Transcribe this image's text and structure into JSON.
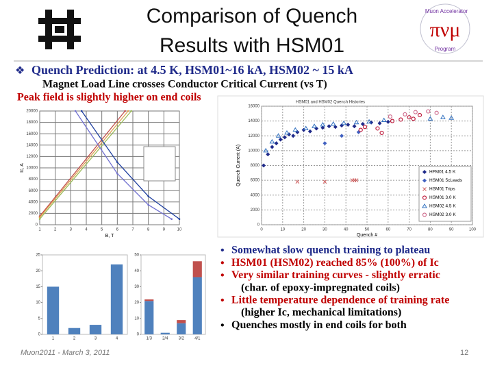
{
  "header": {
    "title_lines": [
      "Comparison of Quench",
      "Results with HSM01"
    ]
  },
  "logo": {
    "arc_top": "Muon Accelerator",
    "arc_bottom": "Program"
  },
  "top_bullets": [
    {
      "text": "Quench Prediction: at 4.5 K, HSM01~16 kA, HSM02 ~ 15 kA"
    },
    {
      "text": "Magnet Load Line crosses Conductor Critical Current (vs T)"
    },
    {
      "text": "Peak field is slightly higher on end coils"
    }
  ],
  "right_bullets": [
    {
      "text": "Somewhat slow quench training to plateau",
      "color": "#1f2a8a",
      "bullet": true
    },
    {
      "text": "HSM01 (HSM02) reached 85% (100%) of Ic",
      "color": "#c00000",
      "bullet": true
    },
    {
      "text": "Very similar training curves - slightly erratic",
      "color": "#c00000",
      "bullet": true
    },
    {
      "text": "(char. of epoxy-impregnated coils)",
      "color": "#000000",
      "bullet": false
    },
    {
      "text": "Little temperature dependence of training rate",
      "color": "#c00000",
      "bullet": true
    },
    {
      "text": "(higher Ic, mechanical limitations)",
      "color": "#000000",
      "bullet": false
    },
    {
      "text": "Quenches mostly in end coils for both",
      "color": "#000000",
      "bullet": true
    }
  ],
  "footer": {
    "text": "Muon2011 - March 3, 2011",
    "page": "12"
  },
  "load_line": {
    "type": "line",
    "x_label": "B, T",
    "y_label": "Ic, A",
    "xlim": [
      1,
      10
    ],
    "xticks": [
      1,
      2,
      3,
      4,
      5,
      6,
      7,
      8,
      9,
      10
    ],
    "ylim": [
      0,
      20000
    ],
    "yticks": [
      0,
      2000,
      4000,
      6000,
      8000,
      10000,
      12000,
      14000,
      16000,
      18000,
      20000
    ],
    "series": [
      {
        "color": "#c0504d",
        "x": [
          1,
          6.5
        ],
        "values": [
          1500,
          20000
        ]
      },
      {
        "color": "#e0a050",
        "x": [
          1,
          6.7
        ],
        "values": [
          1300,
          20000
        ]
      },
      {
        "color": "#9bbb59",
        "x": [
          1,
          6.9
        ],
        "values": [
          1000,
          20000
        ]
      },
      {
        "color": "#1f3f9f",
        "x": [
          3.7,
          6,
          8,
          10
        ],
        "values": [
          20000,
          11000,
          5000,
          1000
        ]
      },
      {
        "color": "#7070d0",
        "x": [
          3.3,
          6,
          8,
          9.5
        ],
        "values": [
          20000,
          9000,
          3500,
          1000
        ]
      }
    ]
  },
  "quench_history": {
    "type": "scatter",
    "title": "HSM01 and HSM02 Quench Histories",
    "x_label": "Quench #",
    "y_label": "Quench Current (A)",
    "xlim": [
      0,
      100
    ],
    "xticks": [
      0,
      10,
      20,
      30,
      40,
      50,
      60,
      70,
      80,
      90,
      100
    ],
    "ylim": [
      0,
      16000
    ],
    "yticks": [
      0,
      2000,
      4000,
      6000,
      8000,
      10000,
      12000,
      14000,
      16000
    ],
    "series": [
      {
        "name": "HFM01 4.5 K",
        "color": "#1f2a8a",
        "marker": "diamond",
        "x": [
          1,
          3,
          5,
          7,
          9,
          11,
          13,
          15,
          17,
          20,
          23,
          26,
          29,
          32,
          35,
          38,
          41,
          44,
          48,
          52,
          56,
          60
        ],
        "values": [
          8000,
          9500,
          10500,
          11000,
          11500,
          11800,
          12200,
          12000,
          12500,
          12800,
          12600,
          13000,
          13100,
          13300,
          13200,
          13400,
          13500,
          13300,
          13600,
          13800,
          13700,
          13900
        ]
      },
      {
        "name": "HSM01 5cLeads",
        "color": "#4060c0",
        "marker": "diamond",
        "x": [
          30,
          38,
          46
        ],
        "values": [
          11000,
          12000,
          12500
        ]
      },
      {
        "name": "HSM01 Trips",
        "color": "#d06060",
        "marker": "x",
        "x": [
          17,
          30,
          43,
          44,
          45
        ],
        "values": [
          5800,
          5800,
          6000,
          6000,
          6000
        ]
      },
      {
        "name": "HSM01 3.0 K",
        "color": "#c02040",
        "marker": "circle",
        "x": [
          47,
          49,
          55,
          57,
          62,
          66,
          70,
          72,
          75
        ],
        "values": [
          12800,
          13200,
          13000,
          12400,
          14000,
          14200,
          14500,
          14300,
          14800
        ]
      },
      {
        "name": "HSM02 4.5 K",
        "color": "#3070c0",
        "marker": "triangle",
        "x": [
          2,
          5,
          8,
          12,
          16,
          21,
          25,
          29,
          34,
          39,
          45,
          51,
          58,
          80,
          86,
          90
        ],
        "values": [
          10000,
          11200,
          12000,
          12400,
          12800,
          13000,
          13300,
          13500,
          13600,
          13700,
          13800,
          13900,
          14100,
          14300,
          14500,
          14400
        ]
      },
      {
        "name": "HSM02 3.0 K",
        "color": "#d07090",
        "marker": "circle",
        "x": [
          61,
          68,
          73,
          79,
          83
        ],
        "values": [
          14600,
          14900,
          15200,
          15300,
          15100
        ]
      }
    ]
  },
  "bars_left": {
    "type": "bar",
    "categories": [
      "1",
      "2",
      "3",
      "4"
    ],
    "ylim": [
      0,
      25
    ],
    "yticks": [
      0,
      5,
      10,
      15,
      20,
      25
    ],
    "series": [
      {
        "color": "#4f81bd",
        "values": [
          15,
          2,
          3,
          22
        ]
      }
    ]
  },
  "bars_right": {
    "type": "bar",
    "categories": [
      "1/3",
      "2/4",
      "3/2",
      "4/1"
    ],
    "ylim": [
      0,
      50
    ],
    "yticks": [
      0,
      10,
      20,
      30,
      40,
      50
    ],
    "series": [
      {
        "color": "#4f81bd",
        "values": [
          21,
          1,
          7,
          36
        ]
      },
      {
        "color": "#c0504d",
        "values": [
          1,
          0,
          2,
          10
        ]
      }
    ]
  }
}
